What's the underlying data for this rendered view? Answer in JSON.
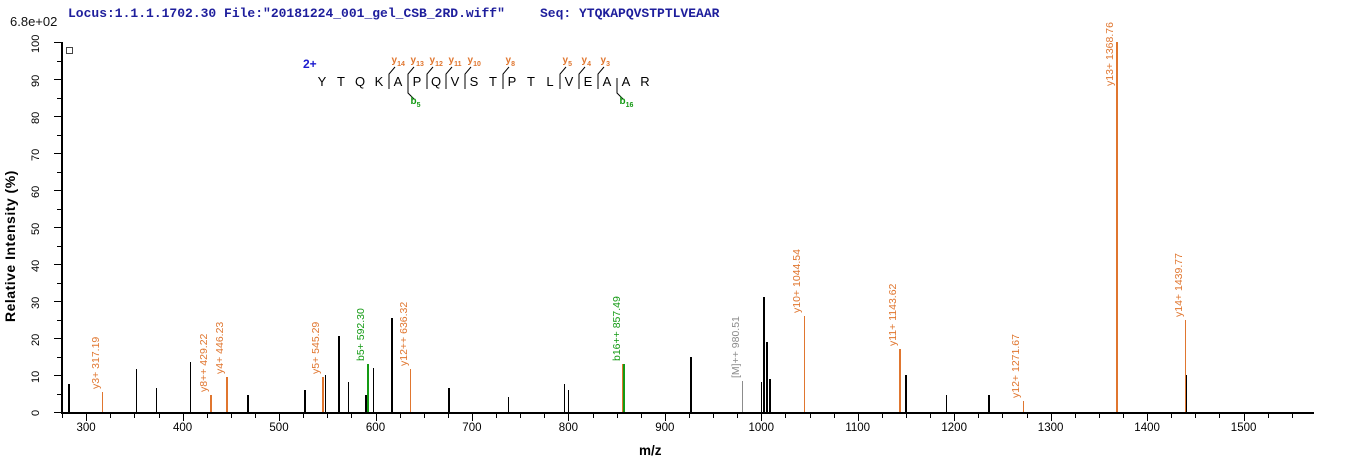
{
  "header": {
    "locus_file": "Locus:1.1.1.1702.30 File:\"20181224_001_gel_CSB_2RD.wiff\"",
    "seq_label": "Seq: YTQKAPQVSTPTLVEAAR",
    "max_intensity_label": "6.8e+02"
  },
  "colors": {
    "y_ion": "#E0762F",
    "b_ion": "#149A14",
    "precursor_ion": "#8C8C8C",
    "unassigned_peak": "#000000",
    "header_text": "#1E1E9C",
    "charge_label": "#1A1ACF"
  },
  "sequence": {
    "charge": "2+",
    "residues": [
      "Y",
      "T",
      "Q",
      "K",
      "A",
      "P",
      "Q",
      "V",
      "S",
      "T",
      "P",
      "T",
      "L",
      "V",
      "E",
      "A",
      "A",
      "R"
    ],
    "y_ion_markers": [
      {
        "name": "y",
        "num": "14",
        "cleavage_after_residue": 4
      },
      {
        "name": "y",
        "num": "13",
        "cleavage_after_residue": 5
      },
      {
        "name": "y",
        "num": "12",
        "cleavage_after_residue": 6
      },
      {
        "name": "y",
        "num": "11",
        "cleavage_after_residue": 7
      },
      {
        "name": "y",
        "num": "10",
        "cleavage_after_residue": 8
      },
      {
        "name": "y",
        "num": "8",
        "cleavage_after_residue": 10
      },
      {
        "name": "y",
        "num": "5",
        "cleavage_after_residue": 13
      },
      {
        "name": "y",
        "num": "4",
        "cleavage_after_residue": 14
      },
      {
        "name": "y",
        "num": "3",
        "cleavage_after_residue": 15
      }
    ],
    "b_ion_markers": [
      {
        "name": "b",
        "num": "5",
        "cleavage_after_residue": 5
      },
      {
        "name": "b",
        "num": "16",
        "cleavage_after_residue": 16
      }
    ]
  },
  "axes": {
    "x": {
      "title": "m/z",
      "min": 275,
      "max": 1572,
      "minor_step": 25,
      "major_step": 100,
      "major_tick_labels": [
        300,
        400,
        500,
        600,
        700,
        800,
        900,
        1000,
        1100,
        1200,
        1300,
        1400,
        1500
      ]
    },
    "y": {
      "title": "Relative  Intensity (%)",
      "min": 0,
      "max": 100,
      "minor_step": 5,
      "major_step": 10,
      "major_tick_labels": [
        0,
        10,
        20,
        30,
        40,
        50,
        60,
        70,
        80,
        90,
        100
      ]
    }
  },
  "chart_data": {
    "type": "bar",
    "subtype": "ms2-fragment-spectrum",
    "xlabel": "m/z",
    "ylabel": "Relative  Intensity (%)",
    "xlim": [
      275,
      1572
    ],
    "ylim": [
      0,
      100
    ],
    "grid": false,
    "base_peak_absolute_intensity": "6.8e+02",
    "precursor": {
      "charge": "2+",
      "mz": 980.51,
      "label": "[M]++ 980.51"
    },
    "peaks": [
      {
        "mz": 282,
        "intensity": 7.5,
        "ion": "none"
      },
      {
        "mz": 317.19,
        "intensity": 5.5,
        "ion": "y",
        "label": "y3+ 317.19"
      },
      {
        "mz": 352,
        "intensity": 11.5,
        "ion": "none"
      },
      {
        "mz": 373,
        "intensity": 6.5,
        "ion": "none"
      },
      {
        "mz": 408,
        "intensity": 13.5,
        "ion": "none"
      },
      {
        "mz": 429.22,
        "intensity": 4.5,
        "ion": "y",
        "label": "y8++ 429.22"
      },
      {
        "mz": 446.23,
        "intensity": 9.5,
        "ion": "y",
        "label": "y4+ 446.23"
      },
      {
        "mz": 468,
        "intensity": 4.5,
        "ion": "none"
      },
      {
        "mz": 527,
        "intensity": 6,
        "ion": "none"
      },
      {
        "mz": 545.29,
        "intensity": 9.5,
        "ion": "y",
        "label": "y5+ 545.29"
      },
      {
        "mz": 548,
        "intensity": 10,
        "ion": "none"
      },
      {
        "mz": 562,
        "intensity": 20.5,
        "ion": "none"
      },
      {
        "mz": 572,
        "intensity": 8,
        "ion": "none"
      },
      {
        "mz": 590,
        "intensity": 4.5,
        "ion": "none"
      },
      {
        "mz": 592.3,
        "intensity": 13,
        "ion": "b",
        "label": "b5+ 592.30"
      },
      {
        "mz": 598,
        "intensity": 12,
        "ion": "none"
      },
      {
        "mz": 617,
        "intensity": 25.5,
        "ion": "none"
      },
      {
        "mz": 636.32,
        "intensity": 11.5,
        "ion": "y",
        "label": "y12++ 636.32"
      },
      {
        "mz": 676,
        "intensity": 6.5,
        "ion": "none"
      },
      {
        "mz": 738,
        "intensity": 4,
        "ion": "none"
      },
      {
        "mz": 796,
        "intensity": 7.5,
        "ion": "none"
      },
      {
        "mz": 800,
        "intensity": 6,
        "ion": "none"
      },
      {
        "mz": 856,
        "intensity": 13,
        "ion": "y"
      },
      {
        "mz": 857.49,
        "intensity": 13,
        "ion": "b",
        "label": "b16++ 857.49"
      },
      {
        "mz": 927,
        "intensity": 15,
        "ion": "none"
      },
      {
        "mz": 980.51,
        "intensity": 8.5,
        "ion": "precursor",
        "label": "[M]++ 980.51"
      },
      {
        "mz": 1000,
        "intensity": 8,
        "ion": "none"
      },
      {
        "mz": 1003,
        "intensity": 31,
        "ion": "none"
      },
      {
        "mz": 1006,
        "intensity": 19,
        "ion": "none"
      },
      {
        "mz": 1009,
        "intensity": 9,
        "ion": "none"
      },
      {
        "mz": 1044.54,
        "intensity": 26,
        "ion": "y",
        "label": "y10+ 1044.54"
      },
      {
        "mz": 1143.62,
        "intensity": 17,
        "ion": "y",
        "label": "y11+ 1143.62"
      },
      {
        "mz": 1150,
        "intensity": 10,
        "ion": "none"
      },
      {
        "mz": 1192,
        "intensity": 4.5,
        "ion": "none"
      },
      {
        "mz": 1236,
        "intensity": 4.5,
        "ion": "none"
      },
      {
        "mz": 1271.67,
        "intensity": 3,
        "ion": "y",
        "label": "y12+ 1271.67"
      },
      {
        "mz": 1368.76,
        "intensity": 100,
        "ion": "y",
        "label": "y13+ 1368.76"
      },
      {
        "mz": 1439.77,
        "intensity": 25,
        "ion": "y",
        "label": "y14+ 1439.77"
      },
      {
        "mz": 1441,
        "intensity": 10,
        "ion": "none"
      }
    ]
  }
}
